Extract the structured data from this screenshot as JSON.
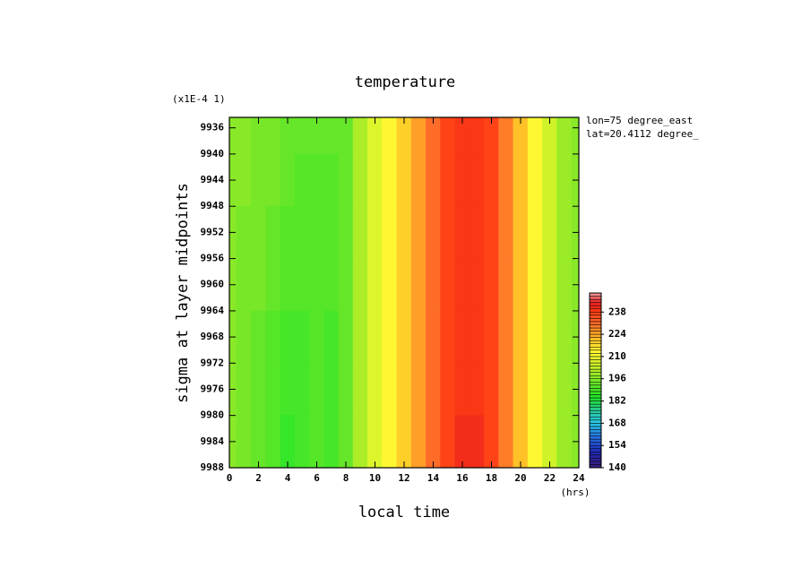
{
  "chart_data": {
    "type": "contour",
    "title": "temperature",
    "y_scale_note": "(x1E-4 1)",
    "xlabel": "local time",
    "xunit": "(hrs)",
    "ylabel": "sigma at layer midpoints",
    "annotations": [
      "lon=75 degree_east",
      "lat=20.4112 degree_"
    ],
    "x": [
      0,
      1,
      2,
      3,
      4,
      5,
      6,
      7,
      8,
      9,
      10,
      11,
      12,
      13,
      14,
      15,
      16,
      17,
      18,
      19,
      20,
      21,
      22,
      23,
      24
    ],
    "y": [
      9936,
      9944,
      9952,
      9960,
      9968,
      9976,
      9984
    ],
    "z": [
      [
        197,
        196,
        195,
        194,
        193,
        192,
        192,
        192,
        193,
        200,
        207,
        213,
        218,
        224,
        230,
        236,
        238,
        238,
        236,
        228,
        220,
        212,
        204,
        199,
        197
      ],
      [
        197,
        196,
        195,
        194,
        192,
        191,
        191,
        191,
        193,
        200,
        207,
        213,
        218,
        224,
        230,
        236,
        238,
        238,
        236,
        228,
        220,
        212,
        204,
        199,
        197
      ],
      [
        196,
        195,
        194,
        193,
        191,
        190,
        190,
        190,
        192,
        200,
        207,
        213,
        218,
        224,
        230,
        236,
        238,
        238,
        236,
        228,
        220,
        212,
        204,
        199,
        196
      ],
      [
        196,
        195,
        194,
        192,
        190,
        190,
        190,
        190,
        192,
        200,
        207,
        213,
        218,
        224,
        230,
        236,
        238,
        238,
        236,
        228,
        220,
        212,
        204,
        199,
        196
      ],
      [
        196,
        195,
        193,
        191,
        189,
        189,
        190,
        189,
        192,
        200,
        207,
        213,
        218,
        224,
        230,
        236,
        238,
        238,
        236,
        228,
        220,
        212,
        204,
        199,
        196
      ],
      [
        196,
        194,
        192,
        190,
        188,
        189,
        190,
        188,
        192,
        200,
        207,
        213,
        218,
        224,
        230,
        236,
        239,
        239,
        236,
        228,
        220,
        212,
        204,
        199,
        196
      ],
      [
        196,
        194,
        192,
        190,
        187,
        188,
        190,
        188,
        192,
        200,
        207,
        213,
        218,
        224,
        230,
        236,
        240,
        240,
        236,
        228,
        220,
        212,
        204,
        199,
        196
      ]
    ],
    "xlim": [
      0,
      24
    ],
    "xticks": [
      0,
      2,
      4,
      6,
      8,
      10,
      12,
      14,
      16,
      18,
      20,
      22,
      24
    ],
    "ylim": [
      9988,
      9934.4
    ],
    "yticks": [
      9936,
      9940,
      9944,
      9948,
      9952,
      9956,
      9960,
      9964,
      9968,
      9972,
      9976,
      9980,
      9984,
      9988
    ],
    "clim": [
      140,
      250
    ],
    "clevel_step": 2,
    "cticks": [
      140,
      154,
      168,
      182,
      196,
      210,
      224,
      238
    ],
    "colorscale": [
      [
        140,
        "#3c1e78"
      ],
      [
        150,
        "#1e28b4"
      ],
      [
        160,
        "#2878e6"
      ],
      [
        168,
        "#28c8e6"
      ],
      [
        176,
        "#28c896"
      ],
      [
        184,
        "#1ee628"
      ],
      [
        194,
        "#6ee628"
      ],
      [
        204,
        "#c8f028"
      ],
      [
        212,
        "#ffff32"
      ],
      [
        220,
        "#ffc828"
      ],
      [
        226,
        "#ff9628"
      ],
      [
        232,
        "#ff6428"
      ],
      [
        238,
        "#ff3c14"
      ],
      [
        244,
        "#e61e1e"
      ],
      [
        250,
        "#f0a0a0"
      ]
    ]
  }
}
